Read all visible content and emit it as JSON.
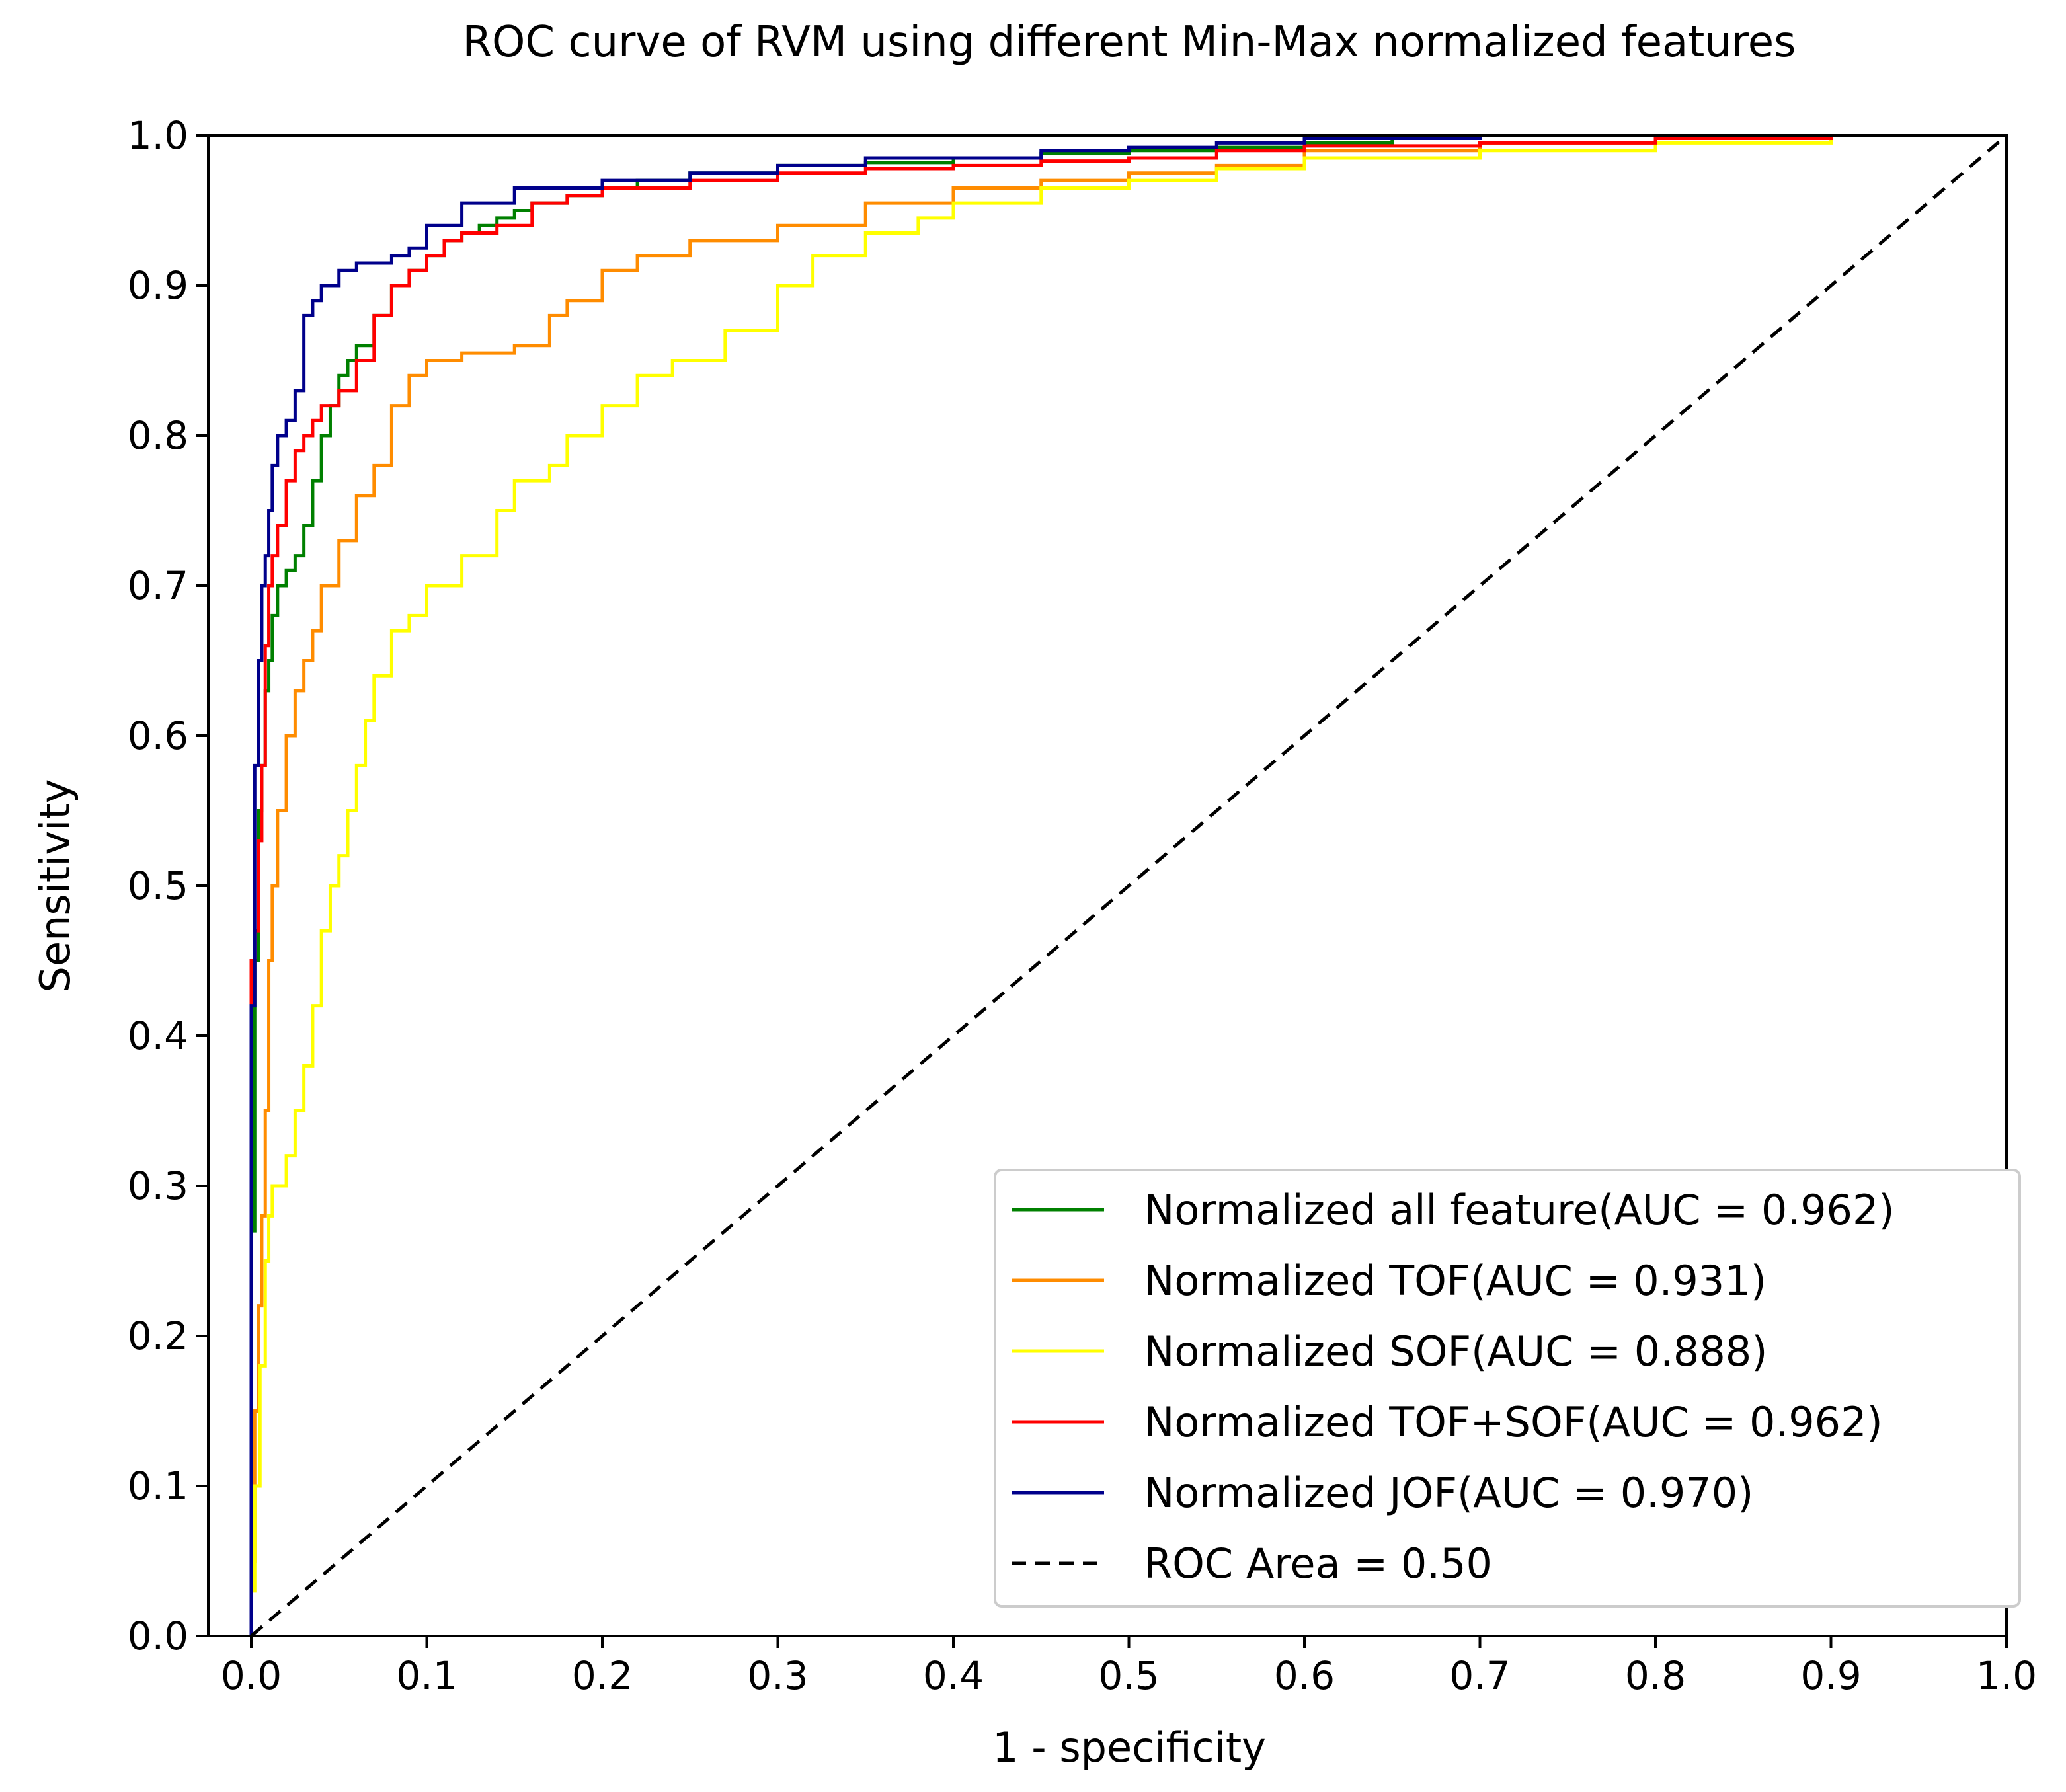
{
  "chart_data": {
    "type": "line",
    "title": "ROC curve of RVM using different Min-Max normalized features",
    "xlabel": "1 - specificity",
    "ylabel": "Sensitivity",
    "xlim": [
      0,
      1
    ],
    "ylim": [
      0,
      1
    ],
    "x_ticks": [
      "0.0",
      "0.1",
      "0.2",
      "0.3",
      "0.4",
      "0.5",
      "0.6",
      "0.7",
      "0.8",
      "0.9",
      "1.0"
    ],
    "y_ticks": [
      "0.0",
      "0.1",
      "0.2",
      "0.3",
      "0.4",
      "0.5",
      "0.6",
      "0.7",
      "0.8",
      "0.9",
      "1.0"
    ],
    "grid": false,
    "legend_position": "lower-right",
    "series": [
      {
        "name": "Normalized all feature(AUC = 0.962)",
        "color": "#008000",
        "dash": "solid",
        "x": [
          0,
          0.002,
          0.004,
          0.006,
          0.008,
          0.01,
          0.012,
          0.015,
          0.02,
          0.025,
          0.03,
          0.035,
          0.04,
          0.045,
          0.05,
          0.055,
          0.06,
          0.07,
          0.08,
          0.09,
          0.1,
          0.11,
          0.12,
          0.13,
          0.14,
          0.15,
          0.16,
          0.18,
          0.2,
          0.22,
          0.25,
          0.3,
          0.35,
          0.4,
          0.45,
          0.5,
          0.55,
          0.6,
          0.65,
          0.7,
          0.8,
          0.9,
          1.0
        ],
        "y": [
          0,
          0.27,
          0.45,
          0.55,
          0.58,
          0.63,
          0.65,
          0.68,
          0.7,
          0.71,
          0.72,
          0.74,
          0.77,
          0.8,
          0.82,
          0.84,
          0.85,
          0.86,
          0.88,
          0.9,
          0.91,
          0.92,
          0.93,
          0.935,
          0.94,
          0.945,
          0.95,
          0.955,
          0.96,
          0.965,
          0.97,
          0.975,
          0.98,
          0.982,
          0.985,
          0.988,
          0.99,
          0.992,
          0.995,
          0.998,
          1.0,
          1.0,
          1.0
        ]
      },
      {
        "name": "Normalized TOF(AUC = 0.931)",
        "color": "#FF8C00",
        "dash": "solid",
        "x": [
          0,
          0.002,
          0.004,
          0.006,
          0.008,
          0.01,
          0.012,
          0.015,
          0.02,
          0.025,
          0.03,
          0.035,
          0.04,
          0.05,
          0.06,
          0.07,
          0.08,
          0.09,
          0.1,
          0.12,
          0.15,
          0.17,
          0.18,
          0.2,
          0.22,
          0.25,
          0.3,
          0.35,
          0.4,
          0.45,
          0.5,
          0.55,
          0.6,
          0.7,
          0.8,
          0.9,
          1.0
        ],
        "y": [
          0,
          0.05,
          0.15,
          0.22,
          0.28,
          0.35,
          0.45,
          0.5,
          0.55,
          0.6,
          0.63,
          0.65,
          0.67,
          0.7,
          0.73,
          0.76,
          0.78,
          0.82,
          0.84,
          0.85,
          0.855,
          0.86,
          0.88,
          0.89,
          0.91,
          0.92,
          0.93,
          0.94,
          0.955,
          0.965,
          0.97,
          0.975,
          0.98,
          0.99,
          0.995,
          0.998,
          1.0
        ]
      },
      {
        "name": "Normalized SOF(AUC = 0.888)",
        "color": "#FFFF00",
        "dash": "solid",
        "x": [
          0,
          0.002,
          0.005,
          0.008,
          0.01,
          0.012,
          0.015,
          0.02,
          0.025,
          0.03,
          0.035,
          0.04,
          0.045,
          0.05,
          0.055,
          0.06,
          0.065,
          0.07,
          0.08,
          0.09,
          0.1,
          0.12,
          0.14,
          0.15,
          0.17,
          0.18,
          0.2,
          0.22,
          0.24,
          0.27,
          0.3,
          0.32,
          0.35,
          0.38,
          0.4,
          0.45,
          0.5,
          0.55,
          0.6,
          0.7,
          0.8,
          0.9,
          1.0
        ],
        "y": [
          0,
          0.03,
          0.1,
          0.18,
          0.25,
          0.28,
          0.3,
          0.3,
          0.32,
          0.35,
          0.38,
          0.42,
          0.47,
          0.5,
          0.52,
          0.55,
          0.58,
          0.61,
          0.64,
          0.67,
          0.68,
          0.7,
          0.72,
          0.75,
          0.77,
          0.78,
          0.8,
          0.82,
          0.84,
          0.85,
          0.87,
          0.9,
          0.92,
          0.935,
          0.945,
          0.955,
          0.965,
          0.97,
          0.978,
          0.985,
          0.99,
          0.995,
          1.0
        ]
      },
      {
        "name": "Normalized TOF+SOF(AUC = 0.962)",
        "color": "#FF0000",
        "dash": "solid",
        "x": [
          0,
          0.002,
          0.004,
          0.006,
          0.008,
          0.01,
          0.012,
          0.015,
          0.02,
          0.025,
          0.03,
          0.035,
          0.04,
          0.05,
          0.06,
          0.07,
          0.08,
          0.09,
          0.1,
          0.11,
          0.12,
          0.14,
          0.16,
          0.18,
          0.2,
          0.25,
          0.3,
          0.35,
          0.4,
          0.45,
          0.5,
          0.55,
          0.6,
          0.7,
          0.8,
          0.9,
          1.0
        ],
        "y": [
          0,
          0.45,
          0.47,
          0.53,
          0.58,
          0.66,
          0.7,
          0.72,
          0.74,
          0.77,
          0.79,
          0.8,
          0.81,
          0.82,
          0.83,
          0.85,
          0.88,
          0.9,
          0.91,
          0.92,
          0.93,
          0.935,
          0.94,
          0.955,
          0.96,
          0.965,
          0.97,
          0.975,
          0.978,
          0.98,
          0.983,
          0.985,
          0.99,
          0.993,
          0.995,
          0.998,
          1.0
        ]
      },
      {
        "name": "Normalized JOF(AUC = 0.970)",
        "color": "#00008B",
        "dash": "solid",
        "x": [
          0,
          0.002,
          0.004,
          0.006,
          0.008,
          0.01,
          0.012,
          0.015,
          0.02,
          0.025,
          0.03,
          0.035,
          0.04,
          0.05,
          0.06,
          0.07,
          0.08,
          0.09,
          0.1,
          0.12,
          0.15,
          0.2,
          0.25,
          0.3,
          0.35,
          0.4,
          0.45,
          0.5,
          0.55,
          0.6,
          0.7,
          0.8,
          0.9,
          1.0
        ],
        "y": [
          0,
          0.42,
          0.58,
          0.65,
          0.7,
          0.72,
          0.75,
          0.78,
          0.8,
          0.81,
          0.83,
          0.88,
          0.89,
          0.9,
          0.91,
          0.915,
          0.915,
          0.92,
          0.925,
          0.94,
          0.955,
          0.965,
          0.97,
          0.975,
          0.98,
          0.985,
          0.985,
          0.99,
          0.992,
          0.995,
          0.998,
          1.0,
          1.0,
          1.0
        ]
      },
      {
        "name": "ROC Area = 0.50",
        "color": "#000000",
        "dash": "dashed",
        "x": [
          0,
          1
        ],
        "y": [
          0,
          1
        ]
      }
    ]
  }
}
